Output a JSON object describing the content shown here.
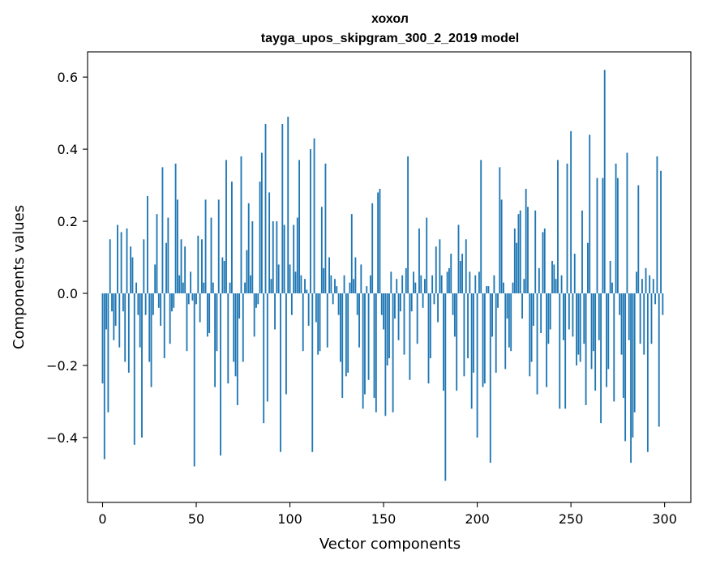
{
  "chart_data": {
    "type": "bar",
    "title_line1": "хохол",
    "title_line2": "tayga_upos_skipgram_300_2_2019 model",
    "xlabel": "Vector components",
    "ylabel": "Components values",
    "xlim": [
      -8,
      314
    ],
    "ylim": [
      -0.58,
      0.67
    ],
    "xticks": [
      0,
      50,
      100,
      150,
      200,
      250,
      300
    ],
    "xtick_labels": [
      "0",
      "50",
      "100",
      "150",
      "200",
      "250",
      "300"
    ],
    "yticks": [
      -0.4,
      -0.2,
      0.0,
      0.2,
      0.4,
      0.6
    ],
    "ytick_labels": [
      "−0.4",
      "−0.2",
      "0.0",
      "0.2",
      "0.4",
      "0.6"
    ],
    "bar_color": "#1f77b4",
    "values": [
      -0.25,
      -0.46,
      -0.1,
      -0.33,
      0.15,
      -0.05,
      -0.13,
      -0.09,
      0.19,
      -0.15,
      0.17,
      -0.05,
      -0.19,
      0.18,
      -0.22,
      0.13,
      0.1,
      -0.42,
      0.03,
      -0.06,
      -0.15,
      -0.4,
      0.15,
      -0.06,
      0.27,
      -0.19,
      -0.26,
      -0.06,
      0.08,
      0.22,
      -0.04,
      -0.09,
      0.35,
      -0.18,
      0.14,
      0.21,
      -0.14,
      -0.05,
      -0.04,
      0.36,
      0.26,
      0.05,
      0.15,
      0.03,
      0.13,
      -0.16,
      -0.03,
      0.06,
      -0.02,
      -0.48,
      -0.03,
      0.16,
      -0.08,
      0.15,
      0.03,
      0.26,
      -0.12,
      -0.11,
      0.21,
      0.03,
      -0.26,
      -0.16,
      0.26,
      -0.45,
      0.1,
      0.09,
      0.37,
      -0.25,
      0.03,
      0.31,
      -0.19,
      -0.23,
      -0.31,
      -0.07,
      0.38,
      -0.19,
      0.03,
      0.12,
      0.25,
      0.05,
      0.2,
      -0.12,
      -0.04,
      -0.03,
      0.31,
      0.39,
      -0.36,
      0.47,
      -0.3,
      0.28,
      0.04,
      0.2,
      -0.1,
      0.2,
      0.08,
      -0.44,
      0.47,
      0.19,
      -0.28,
      0.49,
      0.08,
      -0.06,
      0.19,
      0.06,
      0.21,
      0.37,
      0.05,
      -0.16,
      0.04,
      0.01,
      -0.09,
      0.4,
      -0.44,
      0.43,
      -0.08,
      -0.17,
      -0.16,
      0.24,
      0.07,
      0.36,
      -0.15,
      0.1,
      0.05,
      -0.03,
      0.04,
      0.02,
      -0.06,
      -0.19,
      -0.29,
      0.05,
      -0.23,
      -0.22,
      0.03,
      0.22,
      0.04,
      0.1,
      -0.06,
      -0.15,
      0.08,
      -0.32,
      -0.28,
      0.02,
      -0.24,
      0.05,
      0.25,
      -0.29,
      -0.33,
      0.28,
      0.29,
      -0.06,
      -0.1,
      -0.34,
      -0.2,
      -0.18,
      0.06,
      -0.33,
      -0.07,
      0.04,
      -0.13,
      -0.05,
      0.05,
      -0.17,
      0.07,
      0.38,
      -0.24,
      -0.05,
      0.06,
      0.03,
      -0.14,
      0.18,
      0.05,
      -0.04,
      0.04,
      0.21,
      -0.25,
      -0.18,
      0.05,
      -0.03,
      0.13,
      -0.08,
      0.15,
      0.05,
      -0.27,
      -0.52,
      0.06,
      0.07,
      0.11,
      -0.06,
      -0.12,
      -0.27,
      0.19,
      0.09,
      0.11,
      -0.23,
      0.15,
      -0.18,
      0.06,
      -0.32,
      -0.22,
      0.05,
      -0.4,
      0.06,
      0.37,
      -0.26,
      -0.25,
      0.02,
      0.02,
      -0.47,
      -0.12,
      0.05,
      -0.22,
      -0.04,
      0.35,
      0.26,
      0.03,
      -0.21,
      -0.07,
      -0.15,
      -0.16,
      0.03,
      0.18,
      0.14,
      0.22,
      0.23,
      -0.07,
      0.04,
      0.29,
      0.24,
      -0.23,
      -0.19,
      -0.09,
      0.23,
      -0.28,
      0.07,
      -0.11,
      0.17,
      0.18,
      -0.26,
      -0.14,
      -0.1,
      0.09,
      0.08,
      0.04,
      0.37,
      -0.32,
      0.05,
      -0.13,
      -0.32,
      0.36,
      -0.1,
      0.45,
      -0.12,
      0.11,
      -0.2,
      -0.17,
      -0.19,
      0.23,
      -0.14,
      -0.31,
      0.14,
      0.44,
      -0.21,
      -0.16,
      -0.27,
      0.32,
      -0.13,
      -0.36,
      0.32,
      0.62,
      -0.26,
      -0.21,
      0.09,
      0.03,
      -0.3,
      0.36,
      0.32,
      -0.06,
      -0.17,
      -0.29,
      -0.41,
      0.39,
      -0.13,
      -0.47,
      -0.4,
      -0.33,
      0.06,
      0.3,
      -0.14,
      0.04,
      -0.17,
      0.07,
      -0.44,
      0.05,
      -0.14,
      0.04,
      -0.03,
      0.38,
      -0.37,
      0.34,
      -0.06
    ]
  }
}
